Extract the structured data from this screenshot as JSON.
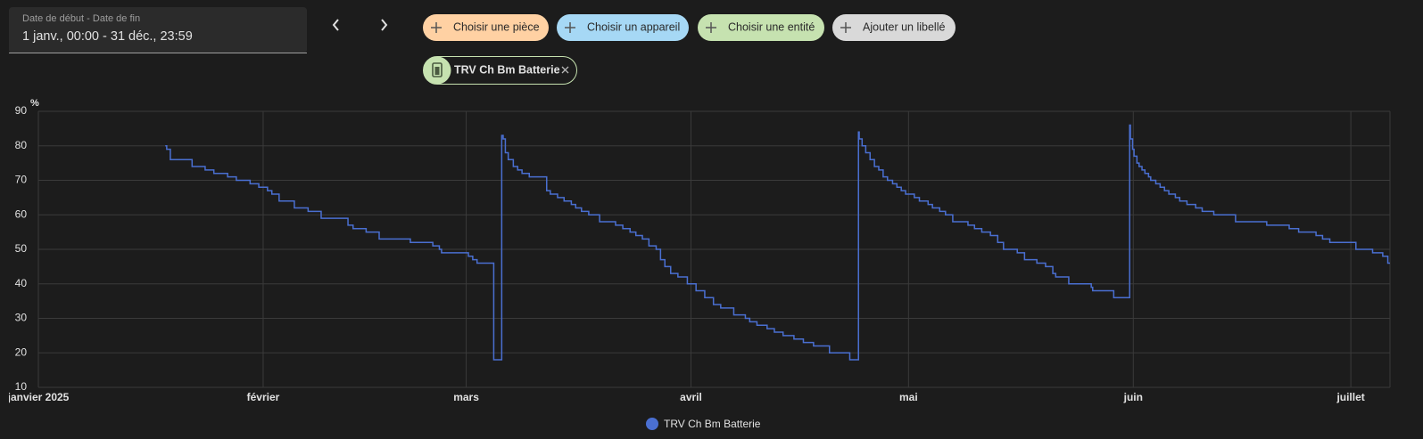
{
  "header": {
    "date_label": "Date de début - Date de fin",
    "date_range": "1 janv., 00:00 - 31 déc., 23:59"
  },
  "filters": [
    "Choisir une pièce",
    "Choisir un appareil",
    "Choisir une entité",
    "Ajouter un libellé"
  ],
  "selected": "TRV Ch Bm Batterie",
  "chart_data": {
    "type": "line",
    "y_unit": "%",
    "ylim": [
      10,
      90
    ],
    "yticks": [
      10,
      20,
      30,
      40,
      50,
      60,
      70,
      80,
      90
    ],
    "grid": true,
    "xlim": [
      0,
      186.4
    ],
    "xticks": [
      {
        "value": 0,
        "label": "janvier 2025"
      },
      {
        "value": 31,
        "label": "février"
      },
      {
        "value": 59,
        "label": "mars"
      },
      {
        "value": 90,
        "label": "avril"
      },
      {
        "value": 120,
        "label": "mai"
      },
      {
        "value": 151,
        "label": "juin"
      },
      {
        "value": 181,
        "label": "juillet"
      }
    ],
    "series": [
      {
        "name": "TRV Ch Bm Batterie",
        "color": "#4a6fd1",
        "x": [
          17.5,
          17.7,
          18.2,
          21.2,
          23.0,
          24.2,
          26.1,
          27.3,
          29.2,
          30.4,
          31.6,
          32.2,
          33.2,
          35.3,
          37.2,
          39.0,
          42.7,
          43.4,
          45.2,
          47.0,
          51.3,
          54.4,
          55.3,
          55.6,
          59.3,
          59.9,
          60.5,
          62.8,
          63.9,
          64.1,
          64.4,
          64.8,
          65.5,
          66.1,
          66.7,
          67.7,
          70.1,
          70.6,
          71.6,
          72.5,
          73.5,
          74.1,
          74.9,
          75.9,
          77.4,
          79.6,
          80.6,
          81.6,
          82.4,
          83.3,
          84.2,
          85.2,
          85.8,
          86.4,
          87.2,
          88.2,
          89.5,
          90.7,
          91.9,
          93.1,
          94.1,
          95.9,
          97.5,
          98.1,
          99.1,
          100.5,
          101.5,
          102.7,
          104.2,
          105.5,
          106.9,
          109.1,
          111.9,
          113.1,
          113.2,
          113.6,
          114.1,
          114.7,
          115.3,
          115.9,
          116.5,
          117.1,
          117.8,
          118.4,
          119.0,
          119.6,
          120.8,
          121.5,
          122.7,
          123.3,
          124.3,
          125.1,
          126.1,
          128.2,
          129.1,
          130.1,
          131.3,
          132.3,
          133.1,
          135.0,
          136.0,
          137.7,
          138.9,
          139.9,
          140.3,
          142.1,
          145.2,
          145.4,
          148.3,
          150.5,
          150.6,
          150.9,
          151.1,
          151.5,
          151.8,
          152.2,
          152.6,
          153.1,
          153.4,
          154.1,
          154.7,
          155.3,
          155.9,
          156.8,
          157.4,
          158.4,
          159.6,
          160.5,
          162.1,
          165.1,
          169.4,
          172.5,
          173.8,
          176.2,
          177.1,
          178.1,
          181.7,
          184.0,
          185.4,
          186.1,
          186.4
        ],
        "values": [
          80,
          79,
          76,
          74,
          73,
          72,
          71,
          70,
          69,
          68,
          67,
          66,
          64,
          62,
          61,
          59,
          57,
          56,
          55,
          53,
          52,
          51,
          50,
          49,
          48,
          47,
          46,
          18,
          83,
          82,
          78,
          76,
          74,
          73,
          72,
          71,
          67,
          66,
          65,
          64,
          63,
          62,
          61,
          60,
          58,
          57,
          56,
          55,
          54,
          53,
          51,
          50,
          47,
          45,
          43,
          42,
          40,
          38,
          36,
          34,
          33,
          31,
          30,
          29,
          28,
          27,
          26,
          25,
          24,
          23,
          22,
          20,
          18,
          84,
          82,
          80,
          78,
          76,
          74,
          73,
          71,
          70,
          69,
          68,
          67,
          66,
          65,
          64,
          63,
          62,
          61,
          60,
          58,
          57,
          56,
          55,
          54,
          52,
          50,
          49,
          47,
          46,
          45,
          43,
          42,
          40,
          39,
          38,
          36,
          86,
          82,
          79,
          77,
          75,
          74,
          73,
          72,
          71,
          70,
          69,
          68,
          67,
          66,
          65,
          64,
          63,
          62,
          61,
          60,
          58,
          57,
          56,
          55,
          54,
          53,
          52,
          50,
          49,
          48,
          46,
          46
        ]
      }
    ]
  }
}
